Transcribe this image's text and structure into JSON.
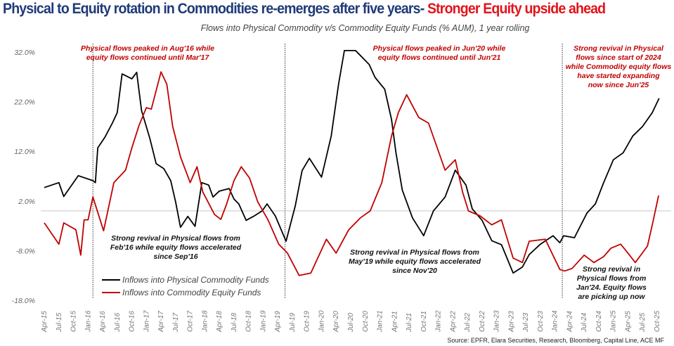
{
  "header": {
    "title_part1": "Physical to Equity rotation in Commodities re-emerges after five years- ",
    "title_part2": "Stronger Equity upside ahead"
  },
  "chart_data": {
    "type": "line",
    "title": "Flows into Physical Commodity v/s Commodity Equity Funds (% AUM), 1 year rolling",
    "xlabel": "",
    "ylabel": "",
    "x_unit": "months since Apr-15",
    "xlim": [
      0,
      126
    ],
    "ylim": [
      -18,
      32
    ],
    "y_ticks": [
      32,
      22,
      12,
      2,
      -8,
      -18
    ],
    "y_tick_labels": [
      "32.0%",
      "22.0%",
      "12.0%",
      "2.0%",
      "-8.0%",
      "-18.0%"
    ],
    "x_tick_labels": [
      "Apr-15",
      "Jul-15",
      "Oct-15",
      "Jan-16",
      "Apr-16",
      "Jul-16",
      "Oct-16",
      "Jan-17",
      "Apr-17",
      "Jul-17",
      "Oct-17",
      "Jan-18",
      "Apr-18",
      "Jul-18",
      "Oct-18",
      "Jan-19",
      "Apr-19",
      "Jul-19",
      "Oct-19",
      "Jan-20",
      "Apr-20",
      "Jul-20",
      "Oct-20",
      "Jan-21",
      "Apr-21",
      "Jul-21",
      "Oct-21",
      "Jan-22",
      "Apr-22",
      "Jul-22",
      "Oct-22",
      "Jan-23",
      "Apr-23",
      "Jul-23",
      "Oct-23",
      "Jan-24",
      "Apr-24",
      "Jul-24",
      "Oct-24",
      "Jan-25",
      "Apr-25",
      "Jul-25",
      "Oct-25"
    ],
    "reference_line": 0,
    "event_markers": [
      "Feb-16",
      "May-19",
      "Jan-24"
    ],
    "legend_position": "bottom-left",
    "series": [
      {
        "name": "Inflows into Physical Commodity Funds",
        "color": "#000000",
        "points": [
          [
            0,
            4.7
          ],
          [
            3,
            5.7
          ],
          [
            4,
            2.9
          ],
          [
            7,
            7.1
          ],
          [
            10,
            6.1
          ],
          [
            10.5,
            5.7
          ],
          [
            11,
            12.7
          ],
          [
            12.5,
            14.9
          ],
          [
            14,
            17.7
          ],
          [
            15,
            19.8
          ],
          [
            16,
            27.6
          ],
          [
            18,
            26.6
          ],
          [
            19,
            27.9
          ],
          [
            20,
            20.2
          ],
          [
            21.7,
            14.6
          ],
          [
            23,
            9.5
          ],
          [
            24.6,
            8.5
          ],
          [
            26,
            6.1
          ],
          [
            27,
            1.8
          ],
          [
            28,
            -3.3
          ],
          [
            29.5,
            -1.1
          ],
          [
            31,
            -3.1
          ],
          [
            32.4,
            5.7
          ],
          [
            33.8,
            5.2
          ],
          [
            34.7,
            2.8
          ],
          [
            36,
            4.0
          ],
          [
            38,
            4.5
          ],
          [
            39,
            2.4
          ],
          [
            40,
            1.4
          ],
          [
            41.5,
            -1.9
          ],
          [
            43,
            -1.1
          ],
          [
            44.8,
            0
          ],
          [
            45.8,
            1.4
          ],
          [
            47.5,
            -1.0
          ],
          [
            49.7,
            -6.1
          ],
          [
            51.6,
            1.0
          ],
          [
            53,
            8.1
          ],
          [
            54.5,
            10.6
          ],
          [
            57,
            6.8
          ],
          [
            59,
            15.1
          ],
          [
            60.5,
            25.5
          ],
          [
            61.7,
            32.3
          ],
          [
            64,
            32.3
          ],
          [
            66.8,
            29.5
          ],
          [
            68,
            26.9
          ],
          [
            70,
            24.5
          ],
          [
            71.4,
            18.4
          ],
          [
            72.3,
            11.7
          ],
          [
            73.6,
            4.2
          ],
          [
            75.7,
            -1.4
          ],
          [
            78,
            -5.0
          ],
          [
            80,
            0
          ],
          [
            82.4,
            2.8
          ],
          [
            84.5,
            8.2
          ],
          [
            86.7,
            5.2
          ],
          [
            88,
            0.4
          ],
          [
            90,
            -1.9
          ],
          [
            92,
            -6.0
          ],
          [
            94,
            -6.8
          ],
          [
            96.4,
            -12.5
          ],
          [
            98.3,
            -11.3
          ],
          [
            99.7,
            -8.8
          ],
          [
            102,
            -6.7
          ],
          [
            104.6,
            -5.0
          ],
          [
            106,
            -6.4
          ],
          [
            106.8,
            -5.0
          ],
          [
            109,
            -5.4
          ],
          [
            111.6,
            -0.4
          ],
          [
            113.3,
            1.4
          ],
          [
            115,
            5.7
          ],
          [
            117,
            10.3
          ],
          [
            119,
            11.7
          ],
          [
            121,
            15.1
          ],
          [
            123,
            17.0
          ],
          [
            125,
            19.8
          ],
          [
            126.4,
            22.7
          ]
        ]
      },
      {
        "name": "Inflows into Commodity  Equity Funds",
        "color": "#c00000",
        "points": [
          [
            0,
            -2.4
          ],
          [
            3,
            -6.7
          ],
          [
            4,
            -2.4
          ],
          [
            6.5,
            -3.8
          ],
          [
            7.5,
            -8.9
          ],
          [
            8.2,
            -1.8
          ],
          [
            9,
            -1.8
          ],
          [
            10,
            2.8
          ],
          [
            12.2,
            -4.0
          ],
          [
            14.3,
            5.7
          ],
          [
            16.7,
            8.2
          ],
          [
            18,
            12.7
          ],
          [
            19.5,
            17.3
          ],
          [
            21,
            20.8
          ],
          [
            22,
            20.5
          ],
          [
            24,
            28.0
          ],
          [
            25.2,
            25.5
          ],
          [
            26.4,
            17.0
          ],
          [
            28,
            10.9
          ],
          [
            30,
            5.7
          ],
          [
            31.4,
            8.9
          ],
          [
            32.6,
            3.8
          ],
          [
            35,
            -0.7
          ],
          [
            36.3,
            -1.7
          ],
          [
            37.5,
            1.4
          ],
          [
            39,
            6.1
          ],
          [
            40.5,
            8.9
          ],
          [
            42.2,
            6.6
          ],
          [
            43.9,
            1.8
          ],
          [
            46,
            -1.8
          ],
          [
            48.2,
            -6.7
          ],
          [
            50,
            -8.5
          ],
          [
            52.4,
            -13.0
          ],
          [
            54.8,
            -12.5
          ],
          [
            58,
            -5.7
          ],
          [
            60,
            -8.5
          ],
          [
            62.6,
            -3.8
          ],
          [
            65,
            -1.4
          ],
          [
            67,
            0
          ],
          [
            69.4,
            5.7
          ],
          [
            71.4,
            15.1
          ],
          [
            72.8,
            19.8
          ],
          [
            74.5,
            23.4
          ],
          [
            77,
            18.8
          ],
          [
            79,
            17.7
          ],
          [
            82.4,
            8.2
          ],
          [
            84.5,
            10.3
          ],
          [
            86,
            3.8
          ],
          [
            87.2,
            0
          ],
          [
            89.6,
            -1.0
          ],
          [
            92,
            -2.8
          ],
          [
            94,
            -1.8
          ],
          [
            96.4,
            -9.5
          ],
          [
            98.3,
            -10.4
          ],
          [
            99.7,
            -6.1
          ],
          [
            103,
            -5.7
          ],
          [
            106,
            -11.8
          ],
          [
            107,
            -12.1
          ],
          [
            108.5,
            -11.6
          ],
          [
            111,
            -8.9
          ],
          [
            113,
            -10.4
          ],
          [
            115,
            -9.2
          ],
          [
            116.5,
            -7.5
          ],
          [
            118.5,
            -6.7
          ],
          [
            120,
            -8.5
          ],
          [
            121.5,
            -10.4
          ],
          [
            124,
            -7.1
          ],
          [
            125,
            -2.8
          ],
          [
            126.3,
            3.1
          ]
        ]
      }
    ],
    "annotations": {
      "a1": [
        "Physical flows peaked in Aug'16 while",
        "equity flows continued until Mar'17"
      ],
      "a2": [
        "Physical flows peaked in Jun'20 while",
        "equity flows continued until Jun'21"
      ],
      "a3": [
        "Strong revival in Physical",
        "flows since start of  2024",
        "while Commodity equity flows",
        "have started expanding",
        "now since Jun'25"
      ],
      "b1": [
        "Strong revival in Physical flows from",
        "Feb'16 while equity flows accelerated",
        "since Sep'16"
      ],
      "b2": [
        "Strong revival in Physical flows from",
        "May'19 while equity flows accelerated",
        "since Nov'20"
      ],
      "b3": [
        "Strong revival in",
        "Physical flows from",
        "Jan'24. Equity flows",
        "are picking up now"
      ]
    }
  },
  "footer": {
    "source": "Source: EPFR, Elara Securities, Research, Bloomberg, Capital Line, ACE MF"
  }
}
